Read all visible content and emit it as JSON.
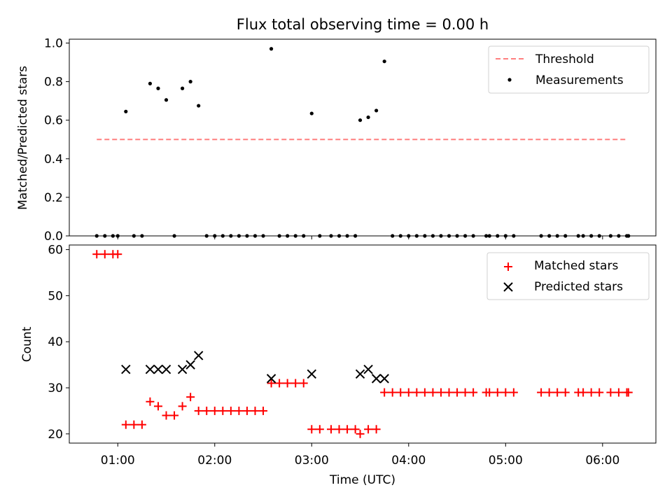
{
  "chart_data": [
    {
      "type": "scatter",
      "title": "Flux total observing time = 0.00 h",
      "xlabel": "",
      "ylabel": "Matched/Predicted stars",
      "xlim": [
        "00:30",
        "06:33"
      ],
      "ylim": [
        0.0,
        1.02
      ],
      "yticks": [
        "0.0",
        "0.2",
        "0.4",
        "0.6",
        "0.8",
        "1.0"
      ],
      "legend_position": "top-right",
      "threshold": {
        "name": "Threshold",
        "value": 0.5,
        "x_start": "00:47",
        "x_end": "06:15",
        "color": "#ff7f7f",
        "style": "dashed"
      },
      "series": [
        {
          "name": "Measurements",
          "color": "#000000",
          "marker": "dot",
          "points": [
            [
              "00:47",
              0
            ],
            [
              "00:52",
              0
            ],
            [
              "00:57",
              0
            ],
            [
              "01:00",
              0
            ],
            [
              "01:05",
              0.645
            ],
            [
              "01:10",
              0
            ],
            [
              "01:15",
              0
            ],
            [
              "01:20",
              0.79
            ],
            [
              "01:25",
              0.765
            ],
            [
              "01:30",
              0.705
            ],
            [
              "01:35",
              0
            ],
            [
              "01:40",
              0.765
            ],
            [
              "01:45",
              0.8
            ],
            [
              "01:50",
              0.675
            ],
            [
              "01:55",
              0
            ],
            [
              "02:00",
              0
            ],
            [
              "02:05",
              0
            ],
            [
              "02:10",
              0
            ],
            [
              "02:15",
              0
            ],
            [
              "02:20",
              0
            ],
            [
              "02:25",
              0
            ],
            [
              "02:30",
              0
            ],
            [
              "02:35",
              0.97
            ],
            [
              "02:40",
              0
            ],
            [
              "02:45",
              0
            ],
            [
              "02:50",
              0
            ],
            [
              "02:55",
              0
            ],
            [
              "03:00",
              0.635
            ],
            [
              "03:05",
              0
            ],
            [
              "03:12",
              0
            ],
            [
              "03:17",
              0
            ],
            [
              "03:22",
              0
            ],
            [
              "03:27",
              0
            ],
            [
              "03:30",
              0.6
            ],
            [
              "03:35",
              0.615
            ],
            [
              "03:40",
              0.65
            ],
            [
              "03:45",
              0.905
            ],
            [
              "03:50",
              0
            ],
            [
              "03:55",
              0
            ],
            [
              "04:00",
              0
            ],
            [
              "04:05",
              0
            ],
            [
              "04:10",
              0
            ],
            [
              "04:15",
              0
            ],
            [
              "04:20",
              0
            ],
            [
              "04:25",
              0
            ],
            [
              "04:30",
              0
            ],
            [
              "04:35",
              0
            ],
            [
              "04:40",
              0
            ],
            [
              "04:48",
              0
            ],
            [
              "04:50",
              0
            ],
            [
              "04:55",
              0
            ],
            [
              "05:00",
              0
            ],
            [
              "05:05",
              0
            ],
            [
              "05:22",
              0
            ],
            [
              "05:27",
              0
            ],
            [
              "05:32",
              0
            ],
            [
              "05:37",
              0
            ],
            [
              "05:45",
              0
            ],
            [
              "05:48",
              0
            ],
            [
              "05:53",
              0
            ],
            [
              "05:58",
              0
            ],
            [
              "06:05",
              0
            ],
            [
              "06:10",
              0
            ],
            [
              "06:15",
              0
            ],
            [
              "06:16",
              0
            ]
          ]
        }
      ]
    },
    {
      "type": "scatter",
      "title": "",
      "xlabel": "Time (UTC)",
      "ylabel": "Count",
      "xlim": [
        "00:30",
        "06:33"
      ],
      "ylim": [
        18,
        61
      ],
      "yticks": [
        "20",
        "30",
        "40",
        "50",
        "60"
      ],
      "xticks": [
        "01:00",
        "02:00",
        "03:00",
        "04:00",
        "05:00",
        "06:00"
      ],
      "legend_position": "top-right",
      "series": [
        {
          "name": "Matched stars",
          "color": "#ff0000",
          "marker": "plus",
          "points": [
            [
              "00:47",
              59
            ],
            [
              "00:52",
              59
            ],
            [
              "00:57",
              59
            ],
            [
              "01:00",
              59
            ],
            [
              "01:05",
              22
            ],
            [
              "01:10",
              22
            ],
            [
              "01:15",
              22
            ],
            [
              "01:20",
              27
            ],
            [
              "01:25",
              26
            ],
            [
              "01:30",
              24
            ],
            [
              "01:35",
              24
            ],
            [
              "01:40",
              26
            ],
            [
              "01:45",
              28
            ],
            [
              "01:50",
              25
            ],
            [
              "01:55",
              25
            ],
            [
              "02:00",
              25
            ],
            [
              "02:05",
              25
            ],
            [
              "02:10",
              25
            ],
            [
              "02:15",
              25
            ],
            [
              "02:20",
              25
            ],
            [
              "02:25",
              25
            ],
            [
              "02:30",
              25
            ],
            [
              "02:35",
              31
            ],
            [
              "02:40",
              31
            ],
            [
              "02:45",
              31
            ],
            [
              "02:50",
              31
            ],
            [
              "02:55",
              31
            ],
            [
              "03:00",
              21
            ],
            [
              "03:05",
              21
            ],
            [
              "03:12",
              21
            ],
            [
              "03:17",
              21
            ],
            [
              "03:22",
              21
            ],
            [
              "03:27",
              21
            ],
            [
              "03:30",
              20
            ],
            [
              "03:35",
              21
            ],
            [
              "03:40",
              21
            ],
            [
              "03:45",
              29
            ],
            [
              "03:50",
              29
            ],
            [
              "03:55",
              29
            ],
            [
              "04:00",
              29
            ],
            [
              "04:05",
              29
            ],
            [
              "04:10",
              29
            ],
            [
              "04:15",
              29
            ],
            [
              "04:20",
              29
            ],
            [
              "04:25",
              29
            ],
            [
              "04:30",
              29
            ],
            [
              "04:35",
              29
            ],
            [
              "04:40",
              29
            ],
            [
              "04:48",
              29
            ],
            [
              "04:50",
              29
            ],
            [
              "04:55",
              29
            ],
            [
              "05:00",
              29
            ],
            [
              "05:05",
              29
            ],
            [
              "05:22",
              29
            ],
            [
              "05:27",
              29
            ],
            [
              "05:32",
              29
            ],
            [
              "05:37",
              29
            ],
            [
              "05:45",
              29
            ],
            [
              "05:48",
              29
            ],
            [
              "05:53",
              29
            ],
            [
              "05:58",
              29
            ],
            [
              "06:05",
              29
            ],
            [
              "06:10",
              29
            ],
            [
              "06:15",
              29
            ],
            [
              "06:16",
              29
            ]
          ]
        },
        {
          "name": "Predicted stars",
          "color": "#000000",
          "marker": "x",
          "points": [
            [
              "01:05",
              34
            ],
            [
              "01:20",
              34
            ],
            [
              "01:25",
              34
            ],
            [
              "01:30",
              34
            ],
            [
              "01:40",
              34
            ],
            [
              "01:45",
              35
            ],
            [
              "01:50",
              37
            ],
            [
              "02:35",
              32
            ],
            [
              "03:00",
              33
            ],
            [
              "03:30",
              33
            ],
            [
              "03:35",
              34
            ],
            [
              "03:40",
              32
            ],
            [
              "03:45",
              32
            ]
          ]
        }
      ]
    }
  ]
}
